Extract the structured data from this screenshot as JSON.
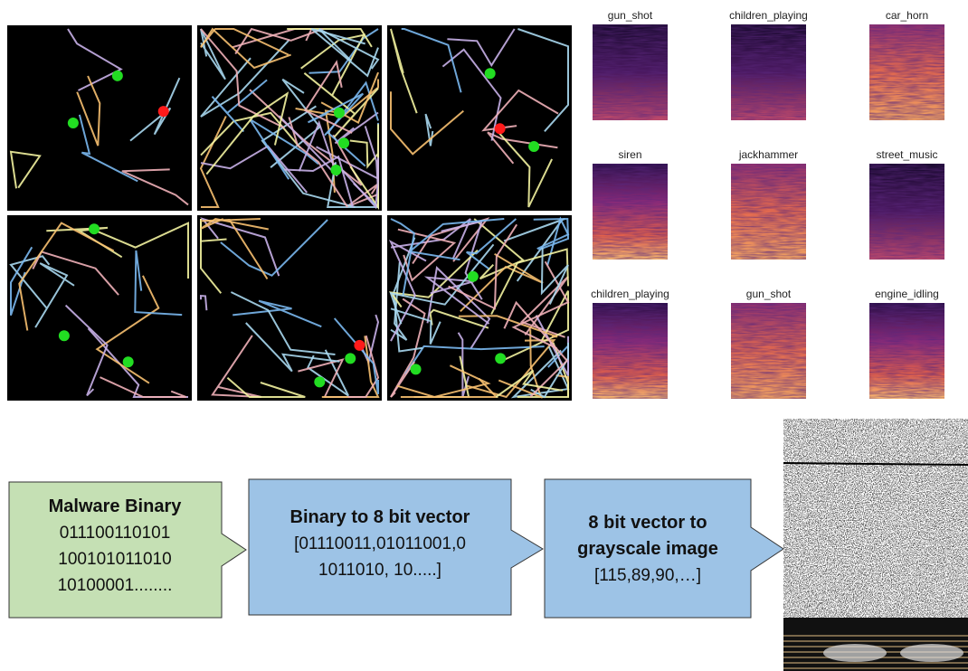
{
  "spectrograms": [
    {
      "label": "gun_shot"
    },
    {
      "label": "children_playing"
    },
    {
      "label": "car_horn"
    },
    {
      "label": "siren"
    },
    {
      "label": "jackhammer"
    },
    {
      "label": "street_music"
    },
    {
      "label": "children_playing"
    },
    {
      "label": "gun_shot"
    },
    {
      "label": "engine_idling"
    }
  ],
  "flow": [
    {
      "title": [
        "Malware Binary"
      ],
      "lines": [
        "011100110101",
        "100101011010",
        "10100001........"
      ]
    },
    {
      "title": [
        "Binary to 8 bit vector"
      ],
      "lines": [
        "[01110011,01011001,0",
        "1011010, 10.....]"
      ]
    },
    {
      "title": [
        "8 bit vector to",
        "grayscale image"
      ],
      "lines": [
        "[115,89,90,…]"
      ]
    }
  ]
}
